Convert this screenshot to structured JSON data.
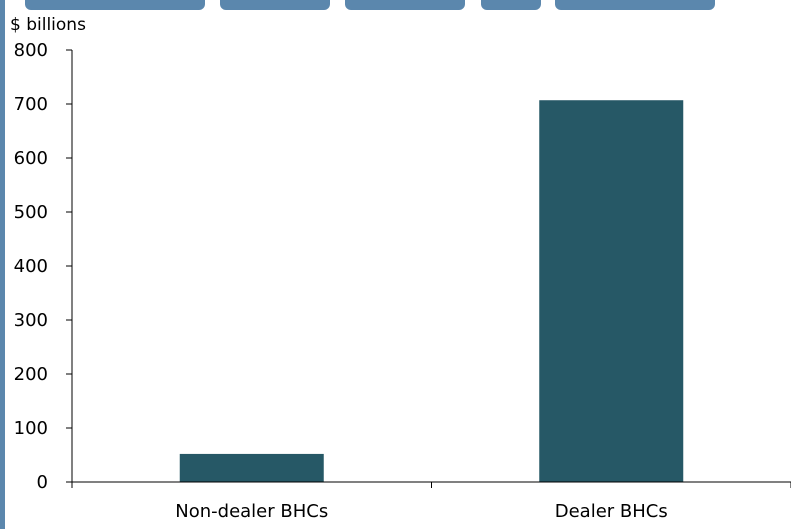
{
  "colors": {
    "bar": "#265866",
    "accent_stripe": "#5b87ad",
    "axis": "#000000"
  },
  "chart_data": {
    "type": "bar",
    "title": "",
    "ylabel": "$ billions",
    "xlabel": "",
    "categories": [
      "Non-dealer BHCs",
      "Dealer BHCs"
    ],
    "values": [
      52,
      707
    ],
    "ylim": [
      0,
      800
    ],
    "yticks": [
      0,
      100,
      200,
      300,
      400,
      500,
      600,
      700,
      800
    ],
    "grid": false,
    "legend": "none"
  }
}
